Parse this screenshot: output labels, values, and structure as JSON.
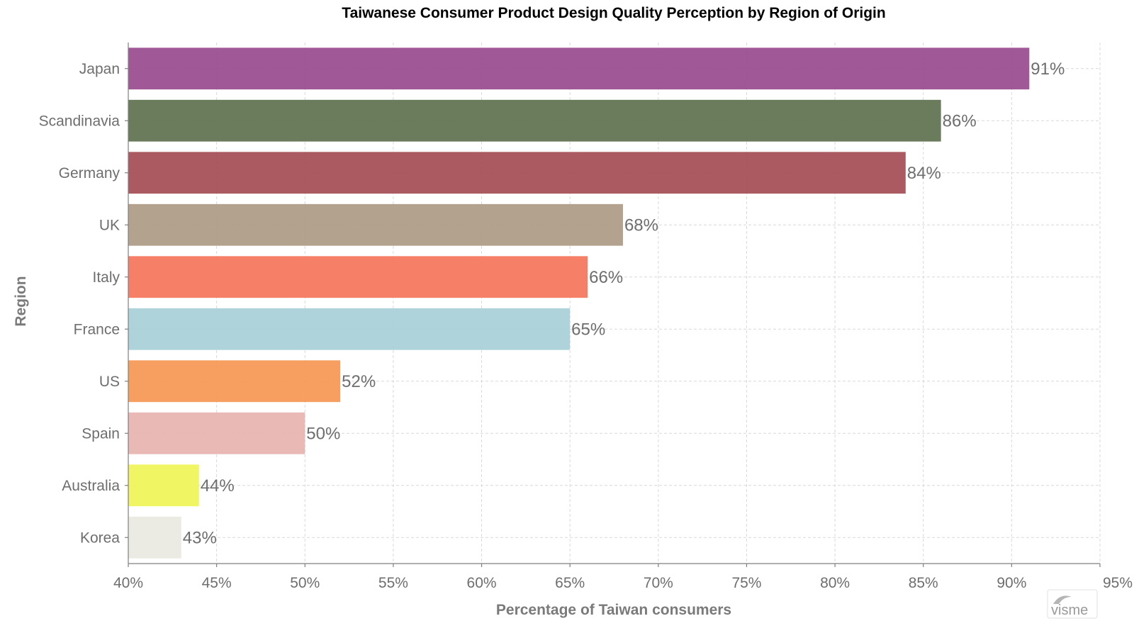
{
  "chart_data": {
    "type": "bar",
    "orientation": "horizontal",
    "title": "Taiwanese Consumer Product Design Quality Perception by Region of Origin",
    "xlabel": "Percentage of Taiwan consumers",
    "ylabel": "Region",
    "categories": [
      "Japan",
      "Scandinavia",
      "Germany",
      "UK",
      "Italy",
      "France",
      "US",
      "Spain",
      "Australia",
      "Korea"
    ],
    "values": [
      91,
      86,
      84,
      68,
      66,
      65,
      52,
      50,
      44,
      43
    ],
    "value_labels": [
      "91%",
      "86%",
      "84%",
      "68%",
      "66%",
      "65%",
      "52%",
      "50%",
      "44%",
      "43%"
    ],
    "colors": [
      "#9b4f90",
      "#637553",
      "#a65159",
      "#af9d88",
      "#f5795f",
      "#abd1d8",
      "#f59a57",
      "#e8b5b2",
      "#eff45c",
      "#eaeae1"
    ],
    "xlim": [
      40,
      95
    ],
    "xticks": [
      40,
      45,
      50,
      55,
      60,
      65,
      70,
      75,
      80,
      85,
      90,
      95
    ],
    "xtick_labels": [
      "40%",
      "45%",
      "50%",
      "55%",
      "60%",
      "65%",
      "70%",
      "75%",
      "80%",
      "85%",
      "90%",
      "95%"
    ],
    "grid": true
  },
  "watermark": {
    "text": "visme"
  }
}
